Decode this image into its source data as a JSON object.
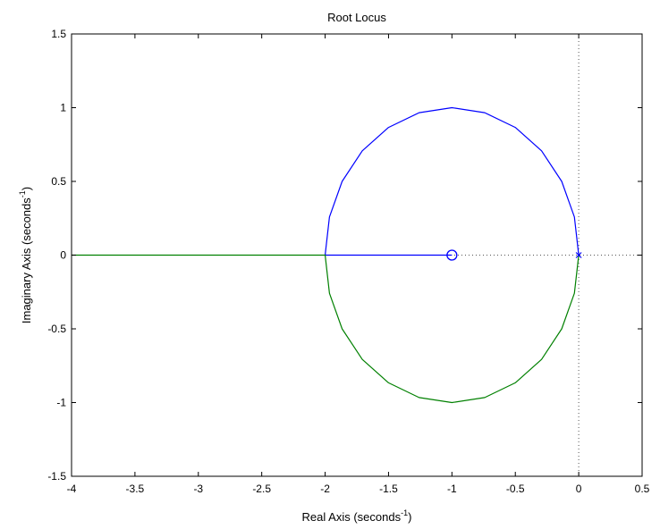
{
  "chart_data": {
    "type": "line",
    "title": "Root Locus",
    "xlabel": {
      "text": "Real Axis (seconds",
      "sup": "-1",
      "suffix": ")"
    },
    "ylabel": {
      "text": "Imaginary Axis (seconds",
      "sup": "-1",
      "suffix": ")"
    },
    "xlim": [
      -4,
      0.5
    ],
    "ylim": [
      -1.5,
      1.5
    ],
    "xticks": [
      -4,
      -3.5,
      -3,
      -2.5,
      -2,
      -1.5,
      -1,
      -0.5,
      0,
      0.5
    ],
    "yticks": [
      -1.5,
      -1,
      -0.5,
      0,
      0.5,
      1,
      1.5
    ],
    "xtick_labels": [
      "-4",
      "-3.5",
      "-3",
      "-2.5",
      "-2",
      "-1.5",
      "-1",
      "-0.5",
      "0",
      "0.5"
    ],
    "ytick_labels": [
      "-1.5",
      "-1",
      "-0.5",
      "0",
      "0.5",
      "1",
      "1.5"
    ],
    "grid": false,
    "series": [
      {
        "color": "#0000ff",
        "points": [
          [
            0,
            0
          ],
          [
            -0.0341,
            0.2588
          ],
          [
            -0.134,
            0.5
          ],
          [
            -0.2929,
            0.7071
          ],
          [
            -0.5,
            0.866
          ],
          [
            -0.7412,
            0.9659
          ],
          [
            -1,
            1
          ],
          [
            -1.2588,
            0.9659
          ],
          [
            -1.5,
            0.866
          ],
          [
            -1.7071,
            0.7071
          ],
          [
            -1.866,
            0.5
          ],
          [
            -1.9659,
            0.2588
          ],
          [
            -2,
            0
          ],
          [
            -1.5,
            0
          ],
          [
            -1,
            0
          ]
        ]
      },
      {
        "color": "#008000",
        "points": [
          [
            0,
            0
          ],
          [
            -0.0341,
            -0.2588
          ],
          [
            -0.134,
            -0.5
          ],
          [
            -0.2929,
            -0.7071
          ],
          [
            -0.5,
            -0.866
          ],
          [
            -0.7412,
            -0.9659
          ],
          [
            -1,
            -1
          ],
          [
            -1.2588,
            -0.9659
          ],
          [
            -1.5,
            -0.866
          ],
          [
            -1.7071,
            -0.7071
          ],
          [
            -1.866,
            -0.5
          ],
          [
            -1.9659,
            -0.2588
          ],
          [
            -2,
            0
          ],
          [
            -3,
            0
          ],
          [
            -4,
            0
          ]
        ]
      }
    ],
    "poles": [
      [
        0,
        0
      ]
    ],
    "zeros": [
      [
        -1,
        0
      ]
    ],
    "marker_color": "#0000ff",
    "reference_lines": {
      "x": 0,
      "y": 0,
      "style": "dotted",
      "color": "#555555"
    }
  }
}
